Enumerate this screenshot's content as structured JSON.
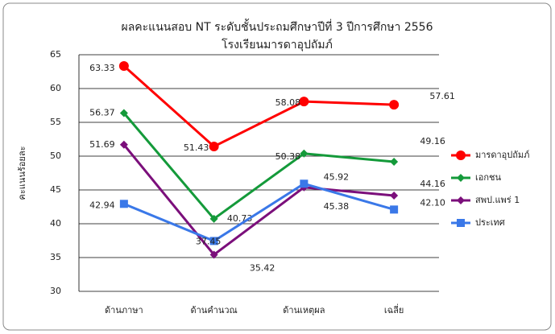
{
  "chart_data": {
    "type": "line",
    "title": "ผลคะแนนสอบ NT ระดับชั้นประถมศึกษาปีที่ 3 ปีการศึกษา 2556",
    "subtitle": "โรงเรียนมารดาอุปถัมภ์",
    "y_label": "คะแนนร้อยละ",
    "categories": [
      "ด้านภาษา",
      "ด้านคำนวณ",
      "ด้านเหตุผล",
      "เฉลี่ย"
    ],
    "series": [
      {
        "name": "มารดาอุปถัมภ์",
        "color": "#ff0000",
        "marker": "circle",
        "values": [
          63.33,
          51.43,
          58.08,
          57.61
        ]
      },
      {
        "name": "เอกชน",
        "color": "#149a3a",
        "marker": "diamond",
        "values": [
          56.37,
          40.73,
          50.38,
          49.16
        ]
      },
      {
        "name": "สพป.แพร่ 1",
        "color": "#7b0f7b",
        "marker": "diamond",
        "values": [
          51.69,
          35.42,
          45.38,
          44.16
        ]
      },
      {
        "name": "ประเทศ",
        "color": "#3a78e8",
        "marker": "square",
        "values": [
          42.94,
          37.45,
          45.92,
          42.1
        ],
        "value_labels": [
          "42.94",
          "37.45",
          "45.92",
          "42.10"
        ]
      }
    ],
    "ylim": [
      30,
      65
    ],
    "yticks": [
      30,
      35,
      40,
      45,
      50,
      55,
      60,
      65
    ],
    "grid": true,
    "legend": "right"
  }
}
